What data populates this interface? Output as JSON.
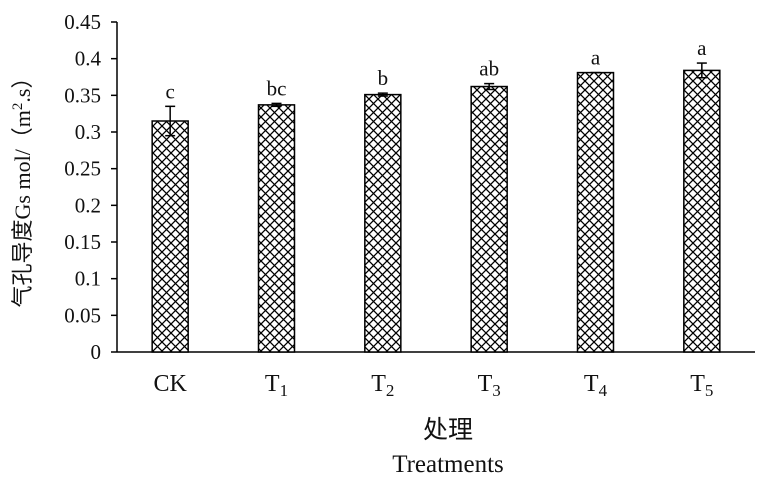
{
  "chart_data": {
    "type": "bar",
    "categories": [
      {
        "label": "CK",
        "sub": ""
      },
      {
        "label": "T",
        "sub": "1"
      },
      {
        "label": "T",
        "sub": "2"
      },
      {
        "label": "T",
        "sub": "3"
      },
      {
        "label": "T",
        "sub": "4"
      },
      {
        "label": "T",
        "sub": "5"
      }
    ],
    "series": [
      {
        "values": [
          0.315,
          0.337,
          0.351,
          0.362,
          0.381,
          0.384
        ],
        "errors": [
          0.02,
          0.002,
          0.002,
          0.004,
          0.0,
          0.01
        ],
        "letters": [
          "c",
          "bc",
          "b",
          "ab",
          "a",
          "a"
        ]
      }
    ],
    "ylim": [
      0,
      0.45
    ],
    "yticks": [
      "0",
      "0.05",
      "0.1",
      "0.15",
      "0.2",
      "0.25",
      "0.3",
      "0.35",
      "0.4",
      "0.45"
    ],
    "ylabel": {
      "chinese": "气孔导度Gs mol/（m",
      "sup": "2",
      "tail": ".s）"
    },
    "xlabel": {
      "chinese": "处理",
      "english": "Treatments"
    },
    "grid": false,
    "pattern": "crosshatch",
    "colors": {
      "bar_fill": "#ffffff",
      "hatch": "#000000",
      "axis": "#000000"
    }
  }
}
